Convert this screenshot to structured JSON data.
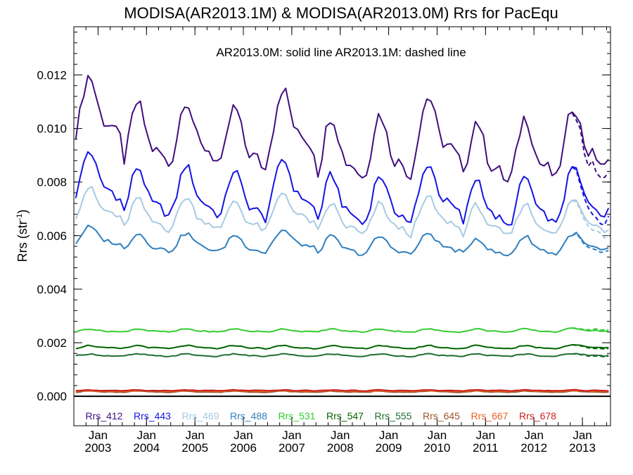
{
  "chart_data": {
    "type": "line",
    "title": "MODISA(AR2013.1M) & MODISA(AR2013.0M)  Rrs for PacEqu",
    "annotation": "AR2013.0M: solid line   AR2013.1M: dashed line",
    "ylabel": "Rrs (str",
    "ylabel_sup": "-1",
    "ylabel_close": ")",
    "ylim": [
      -0.0011,
      0.0138
    ],
    "xlim": [
      2002.5,
      2013.58
    ],
    "yticks": [
      "0.000",
      "0.002",
      "0.004",
      "0.006",
      "0.008",
      "0.010",
      "0.012"
    ],
    "xticks": [
      {
        "month": "Jan",
        "year": "2003"
      },
      {
        "month": "Jan",
        "year": "2004"
      },
      {
        "month": "Jan",
        "year": "2005"
      },
      {
        "month": "Jan",
        "year": "2006"
      },
      {
        "month": "Jan",
        "year": "2007"
      },
      {
        "month": "Jan",
        "year": "2008"
      },
      {
        "month": "Jan",
        "year": "2009"
      },
      {
        "month": "Jan",
        "year": "2010"
      },
      {
        "month": "Jan",
        "year": "2011"
      },
      {
        "month": "Jan",
        "year": "2012"
      },
      {
        "month": "Jan",
        "year": "2013"
      }
    ],
    "baseline": 0.0,
    "series": [
      {
        "name": "Rrs_412",
        "color": "#3f0f7f",
        "mean": 0.0096,
        "amp1": 0.001,
        "amp2": 0.0004,
        "noise": 0.00025,
        "yearly": [
          0.0017,
          0.0,
          0.0002,
          -0.0003,
          0.0009,
          -0.0008,
          -0.0007,
          0.0004,
          -0.0011,
          -0.0009,
          -0.0002
        ],
        "dashed_offset": -0.0005
      },
      {
        "name": "Rrs_443",
        "color": "#1414e6",
        "mean": 0.0075,
        "amp1": 0.0008,
        "amp2": 0.0003,
        "noise": 0.00016,
        "yearly": [
          0.001,
          0.0,
          0.0001,
          -0.0002,
          0.0005,
          -0.0005,
          -0.0005,
          0.0002,
          -0.0007,
          -0.0006,
          0.0
        ],
        "dashed_offset": -0.0003
      },
      {
        "name": "Rrs_469",
        "color": "#a6cbe3",
        "mean": 0.0067,
        "amp1": 0.0005,
        "amp2": 0.0002,
        "noise": 0.00012,
        "yearly": [
          0.0007,
          0.0,
          0.0001,
          -0.0001,
          0.0004,
          -0.0003,
          -0.0003,
          0.0001,
          -0.0004,
          -0.0003,
          0.0
        ],
        "dashed_offset": -0.0002
      },
      {
        "name": "Rrs_488",
        "color": "#2f7fbe",
        "mean": 0.0057,
        "amp1": 0.0003,
        "amp2": 0.0001,
        "noise": 8e-05,
        "yearly": [
          0.0004,
          0.0,
          0.0,
          -0.0001,
          0.0002,
          -0.0002,
          -0.0002,
          0.0,
          -0.0003,
          -0.0002,
          0.0
        ],
        "dashed_offset": -0.0001
      },
      {
        "name": "Rrs_531",
        "color": "#32cd32",
        "mean": 0.00245,
        "amp1": 5e-05,
        "amp2": 2e-05,
        "noise": 2e-05,
        "yearly": [
          0,
          0,
          0,
          0,
          0,
          0,
          0,
          0,
          0,
          0,
          5e-05
        ],
        "dashed_offset": 5e-05
      },
      {
        "name": "Rrs_547",
        "color": "#006400",
        "mean": 0.00183,
        "amp1": 5e-05,
        "amp2": 2e-05,
        "noise": 2e-05,
        "yearly": [
          0,
          0,
          0,
          0,
          0,
          0,
          0,
          0,
          0,
          0,
          5e-05
        ],
        "dashed_offset": -4e-05
      },
      {
        "name": "Rrs_555",
        "color": "#1e6e32",
        "mean": 0.00153,
        "amp1": 4e-05,
        "amp2": 1e-05,
        "noise": 2e-05,
        "yearly": [
          0,
          0,
          0,
          0,
          0,
          0,
          0,
          0,
          0,
          0,
          3e-05
        ],
        "dashed_offset": -3e-05
      },
      {
        "name": "Rrs_645",
        "color": "#a0522d",
        "mean": 0.00017,
        "amp1": 2e-05,
        "amp2": 1e-05,
        "noise": 1e-05,
        "yearly": [
          0,
          0,
          0,
          0,
          0,
          0,
          0,
          0,
          0,
          0,
          0
        ],
        "dashed_offset": 0
      },
      {
        "name": "Rrs_667",
        "color": "#e8641e",
        "mean": 0.0002,
        "amp1": 1e-05,
        "amp2": 1e-05,
        "noise": 1e-05,
        "yearly": [
          0,
          0,
          0,
          0,
          0,
          0,
          0,
          0,
          0,
          0,
          0
        ],
        "dashed_offset": 0
      },
      {
        "name": "Rrs_678",
        "color": "#cc2020",
        "mean": 0.00022,
        "amp1": 1e-05,
        "amp2": 1e-05,
        "noise": 1e-05,
        "yearly": [
          0,
          0,
          0,
          0,
          0,
          0,
          0,
          0,
          0,
          0,
          0
        ],
        "dashed_offset": 0
      }
    ],
    "dashed_from": 2012.75,
    "grid": false,
    "legend_placement": "bottom"
  }
}
